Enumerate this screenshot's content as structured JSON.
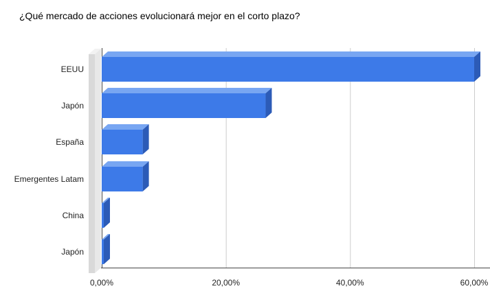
{
  "chart_data": {
    "type": "bar",
    "orientation": "horizontal",
    "effect": "3d",
    "title": "¿Qué mercado de acciones evolucionará mejor en el corto plazo?",
    "categories": [
      "EEUU",
      "Japón",
      "España",
      "Emergentes Latam",
      "China",
      "Japón"
    ],
    "values": [
      60.0,
      26.4,
      6.6,
      6.6,
      0.2,
      0.2
    ],
    "value_unit": "%",
    "xlabel": "",
    "ylabel": "",
    "xlim": [
      0,
      62
    ],
    "x_ticks": [
      {
        "value": 0,
        "label": "0,00%"
      },
      {
        "value": 20,
        "label": "20,00%"
      },
      {
        "value": 40,
        "label": "40,00%"
      },
      {
        "value": 60,
        "label": "60,00%"
      }
    ],
    "grid": true,
    "legend": "none",
    "colors": {
      "bar_front": "#3d7ae8",
      "bar_top": "#78a6f2",
      "bar_side": "#2c5bb7",
      "wall_front": "#d9d9d9",
      "wall_side": "#e8e8e8",
      "wall_top": "#f2f2f2",
      "gridline": "#cccccc",
      "axis_line": "#444444",
      "text": "#222222",
      "background": "#ffffff"
    }
  }
}
